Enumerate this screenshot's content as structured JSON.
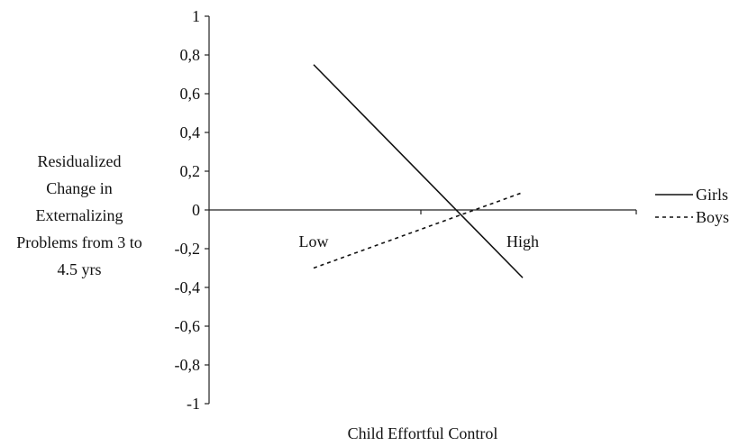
{
  "chart_data": {
    "type": "line",
    "title": "",
    "xlabel": "Child Effortful Control",
    "ylabel": "Residualized Change in Externalizing Problems from 3 to 4.5 yrs",
    "ylabel_lines": [
      "Residualized",
      "Change in",
      "Externalizing",
      "Problems from 3 to",
      "4.5 yrs"
    ],
    "categories": [
      "Low",
      "High"
    ],
    "x_axis_position": 0,
    "ylim": [
      -1,
      1
    ],
    "yticks": [
      1,
      0.8,
      0.6,
      0.4,
      0.2,
      0,
      -0.2,
      -0.4,
      -0.6,
      -0.8,
      -1
    ],
    "ytick_labels": [
      "1",
      "0,8",
      "0,6",
      "0,4",
      "0,2",
      "0",
      "-0,2",
      "-0,4",
      "-0,6",
      "-0,8",
      "-1"
    ],
    "grid": false,
    "legend_position": "right",
    "series": [
      {
        "name": "Girls",
        "style": "solid",
        "values": [
          0.75,
          -0.35
        ]
      },
      {
        "name": "Boys",
        "style": "dashed",
        "values": [
          -0.3,
          0.09
        ]
      }
    ]
  }
}
